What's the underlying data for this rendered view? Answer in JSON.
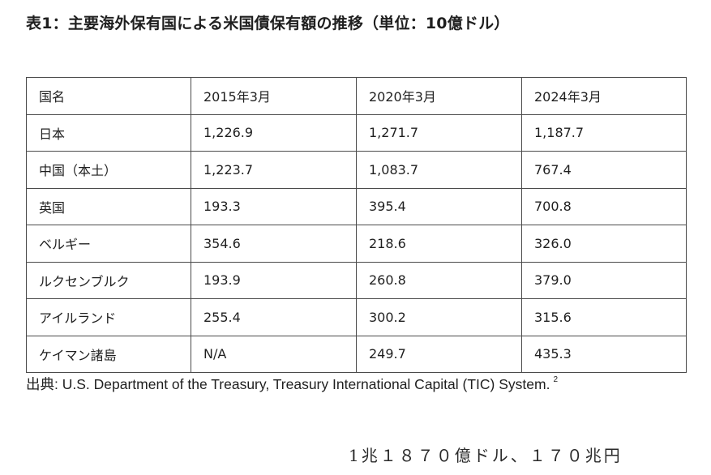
{
  "title": "表1：主要海外保有国による米国債保有額の推移（単位：10億ドル）",
  "table": {
    "headers": [
      "国名",
      "2015年3月",
      "2020年3月",
      "2024年3月"
    ],
    "rows": [
      [
        "日本",
        "1,226.9",
        "1,271.7",
        "1,187.7"
      ],
      [
        "中国（本土）",
        "1,223.7",
        "1,083.7",
        "767.4"
      ],
      [
        "英国",
        "193.3",
        "395.4",
        "700.8"
      ],
      [
        "ベルギー",
        "354.6",
        "218.6",
        "326.0"
      ],
      [
        "ルクセンブルク",
        "193.9",
        "260.8",
        "379.0"
      ],
      [
        "アイルランド",
        "255.4",
        "300.2",
        "315.6"
      ],
      [
        "ケイマン諸島",
        "N/A",
        "249.7",
        "435.3"
      ]
    ]
  },
  "source": {
    "label": "出典: U.S. Department of the Treasury, Treasury International Capital (TIC) System.",
    "footnote": "2"
  },
  "note": "1兆１８７０億ドル、１７０兆円"
}
